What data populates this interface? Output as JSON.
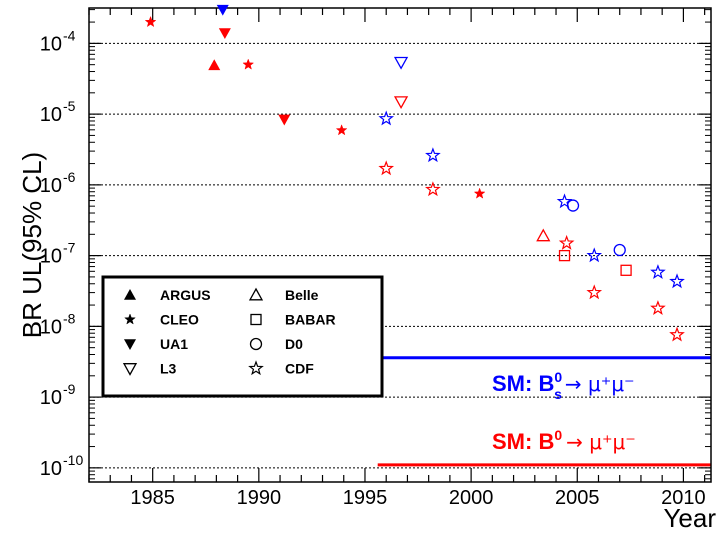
{
  "chart_data": {
    "type": "scatter",
    "ylabel": "BR UL(95% CL)",
    "xlabel": "Year",
    "y_scale": "log",
    "xlim": [
      1982,
      2011.3
    ],
    "ylim_exponent": [
      -10.2,
      -3.5
    ],
    "x_ticks": [
      "1985",
      "1990",
      "1995",
      "2000",
      "2005",
      "2010"
    ],
    "x_tick_values": [
      1985,
      1990,
      1995,
      2000,
      2005,
      2010
    ],
    "y_ticks": [
      {
        "base": "10",
        "exp": "-10",
        "value": -10
      },
      {
        "base": "10",
        "exp": "-9",
        "value": -9
      },
      {
        "base": "10",
        "exp": "-8",
        "value": -8
      },
      {
        "base": "10",
        "exp": "-7",
        "value": -7
      },
      {
        "base": "10",
        "exp": "-6",
        "value": -6
      },
      {
        "base": "10",
        "exp": "-5",
        "value": -5
      },
      {
        "base": "10",
        "exp": "-4",
        "value": -4
      }
    ],
    "grid": "horizontal dotted at decades",
    "colors": {
      "bs": "#0000ff",
      "bd": "#ff0000",
      "text": "#000000"
    },
    "experiments": [
      {
        "name": "ARGUS",
        "marker": "triangle-up-filled"
      },
      {
        "name": "CLEO",
        "marker": "star-filled"
      },
      {
        "name": "UA1",
        "marker": "triangle-down-filled"
      },
      {
        "name": "L3",
        "marker": "triangle-down-open"
      },
      {
        "name": "Belle",
        "marker": "triangle-up-open"
      },
      {
        "name": "BABAR",
        "marker": "square-open"
      },
      {
        "name": "D0",
        "marker": "circle-open"
      },
      {
        "name": "CDF",
        "marker": "star-open"
      }
    ],
    "series": [
      {
        "decay": "Bd",
        "experiment": "CLEO",
        "points": [
          [
            1984.9,
            0.0002
          ],
          [
            1989.5,
            5e-05
          ],
          [
            1993.9,
            5.9e-06
          ],
          [
            2000.4,
            7.5e-07
          ]
        ]
      },
      {
        "decay": "Bd",
        "experiment": "ARGUS",
        "points": [
          [
            1987.9,
            4.9e-05
          ]
        ]
      },
      {
        "decay": "Bs",
        "experiment": "UA1",
        "points": [
          [
            1988.3,
            0.0003
          ]
        ]
      },
      {
        "decay": "Bd",
        "experiment": "UA1",
        "points": [
          [
            1988.4,
            0.00014
          ],
          [
            1991.2,
            8.4e-06
          ]
        ]
      },
      {
        "decay": "Bs",
        "experiment": "L3",
        "points": [
          [
            1996.7,
            5.4e-05
          ]
        ]
      },
      {
        "decay": "Bd",
        "experiment": "L3",
        "points": [
          [
            1996.7,
            1.5e-05
          ]
        ]
      },
      {
        "decay": "Bs",
        "experiment": "CDF",
        "points": [
          [
            1996.0,
            8.6e-06
          ],
          [
            1998.2,
            2.6e-06
          ],
          [
            2004.4,
            5.8e-07
          ],
          [
            2005.8,
            1e-07
          ],
          [
            2008.8,
            5.8e-08
          ],
          [
            2009.7,
            4.3e-08
          ]
        ]
      },
      {
        "decay": "Bd",
        "experiment": "CDF",
        "points": [
          [
            1996.0,
            1.7e-06
          ],
          [
            1998.2,
            8.6e-07
          ],
          [
            2004.5,
            1.5e-07
          ],
          [
            2005.8,
            3e-08
          ],
          [
            2008.8,
            1.8e-08
          ],
          [
            2009.7,
            7.6e-09
          ]
        ]
      },
      {
        "decay": "Bd",
        "experiment": "Belle",
        "points": [
          [
            2003.4,
            1.9e-07
          ]
        ]
      },
      {
        "decay": "Bd",
        "experiment": "BABAR",
        "points": [
          [
            2004.4,
            1e-07
          ],
          [
            2007.3,
            6.2e-08
          ]
        ]
      },
      {
        "decay": "Bs",
        "experiment": "D0",
        "points": [
          [
            2004.8,
            5.1e-07
          ],
          [
            2007.0,
            1.2e-07
          ]
        ]
      }
    ],
    "sm_lines": [
      {
        "decay": "Bs",
        "value": 3.6e-09,
        "x_start": 1995.6,
        "x_end": 2011.3,
        "label": "SM: B",
        "label_sub": "s",
        "label_sup": "0",
        "label_tail": "→ μ⁺μ⁻"
      },
      {
        "decay": "Bd",
        "value": 1.1e-10,
        "x_start": 1995.6,
        "x_end": 2011.3,
        "label": "SM: B",
        "label_sub": "",
        "label_sup": "0",
        "label_tail": "→ μ⁺μ⁻"
      }
    ]
  }
}
